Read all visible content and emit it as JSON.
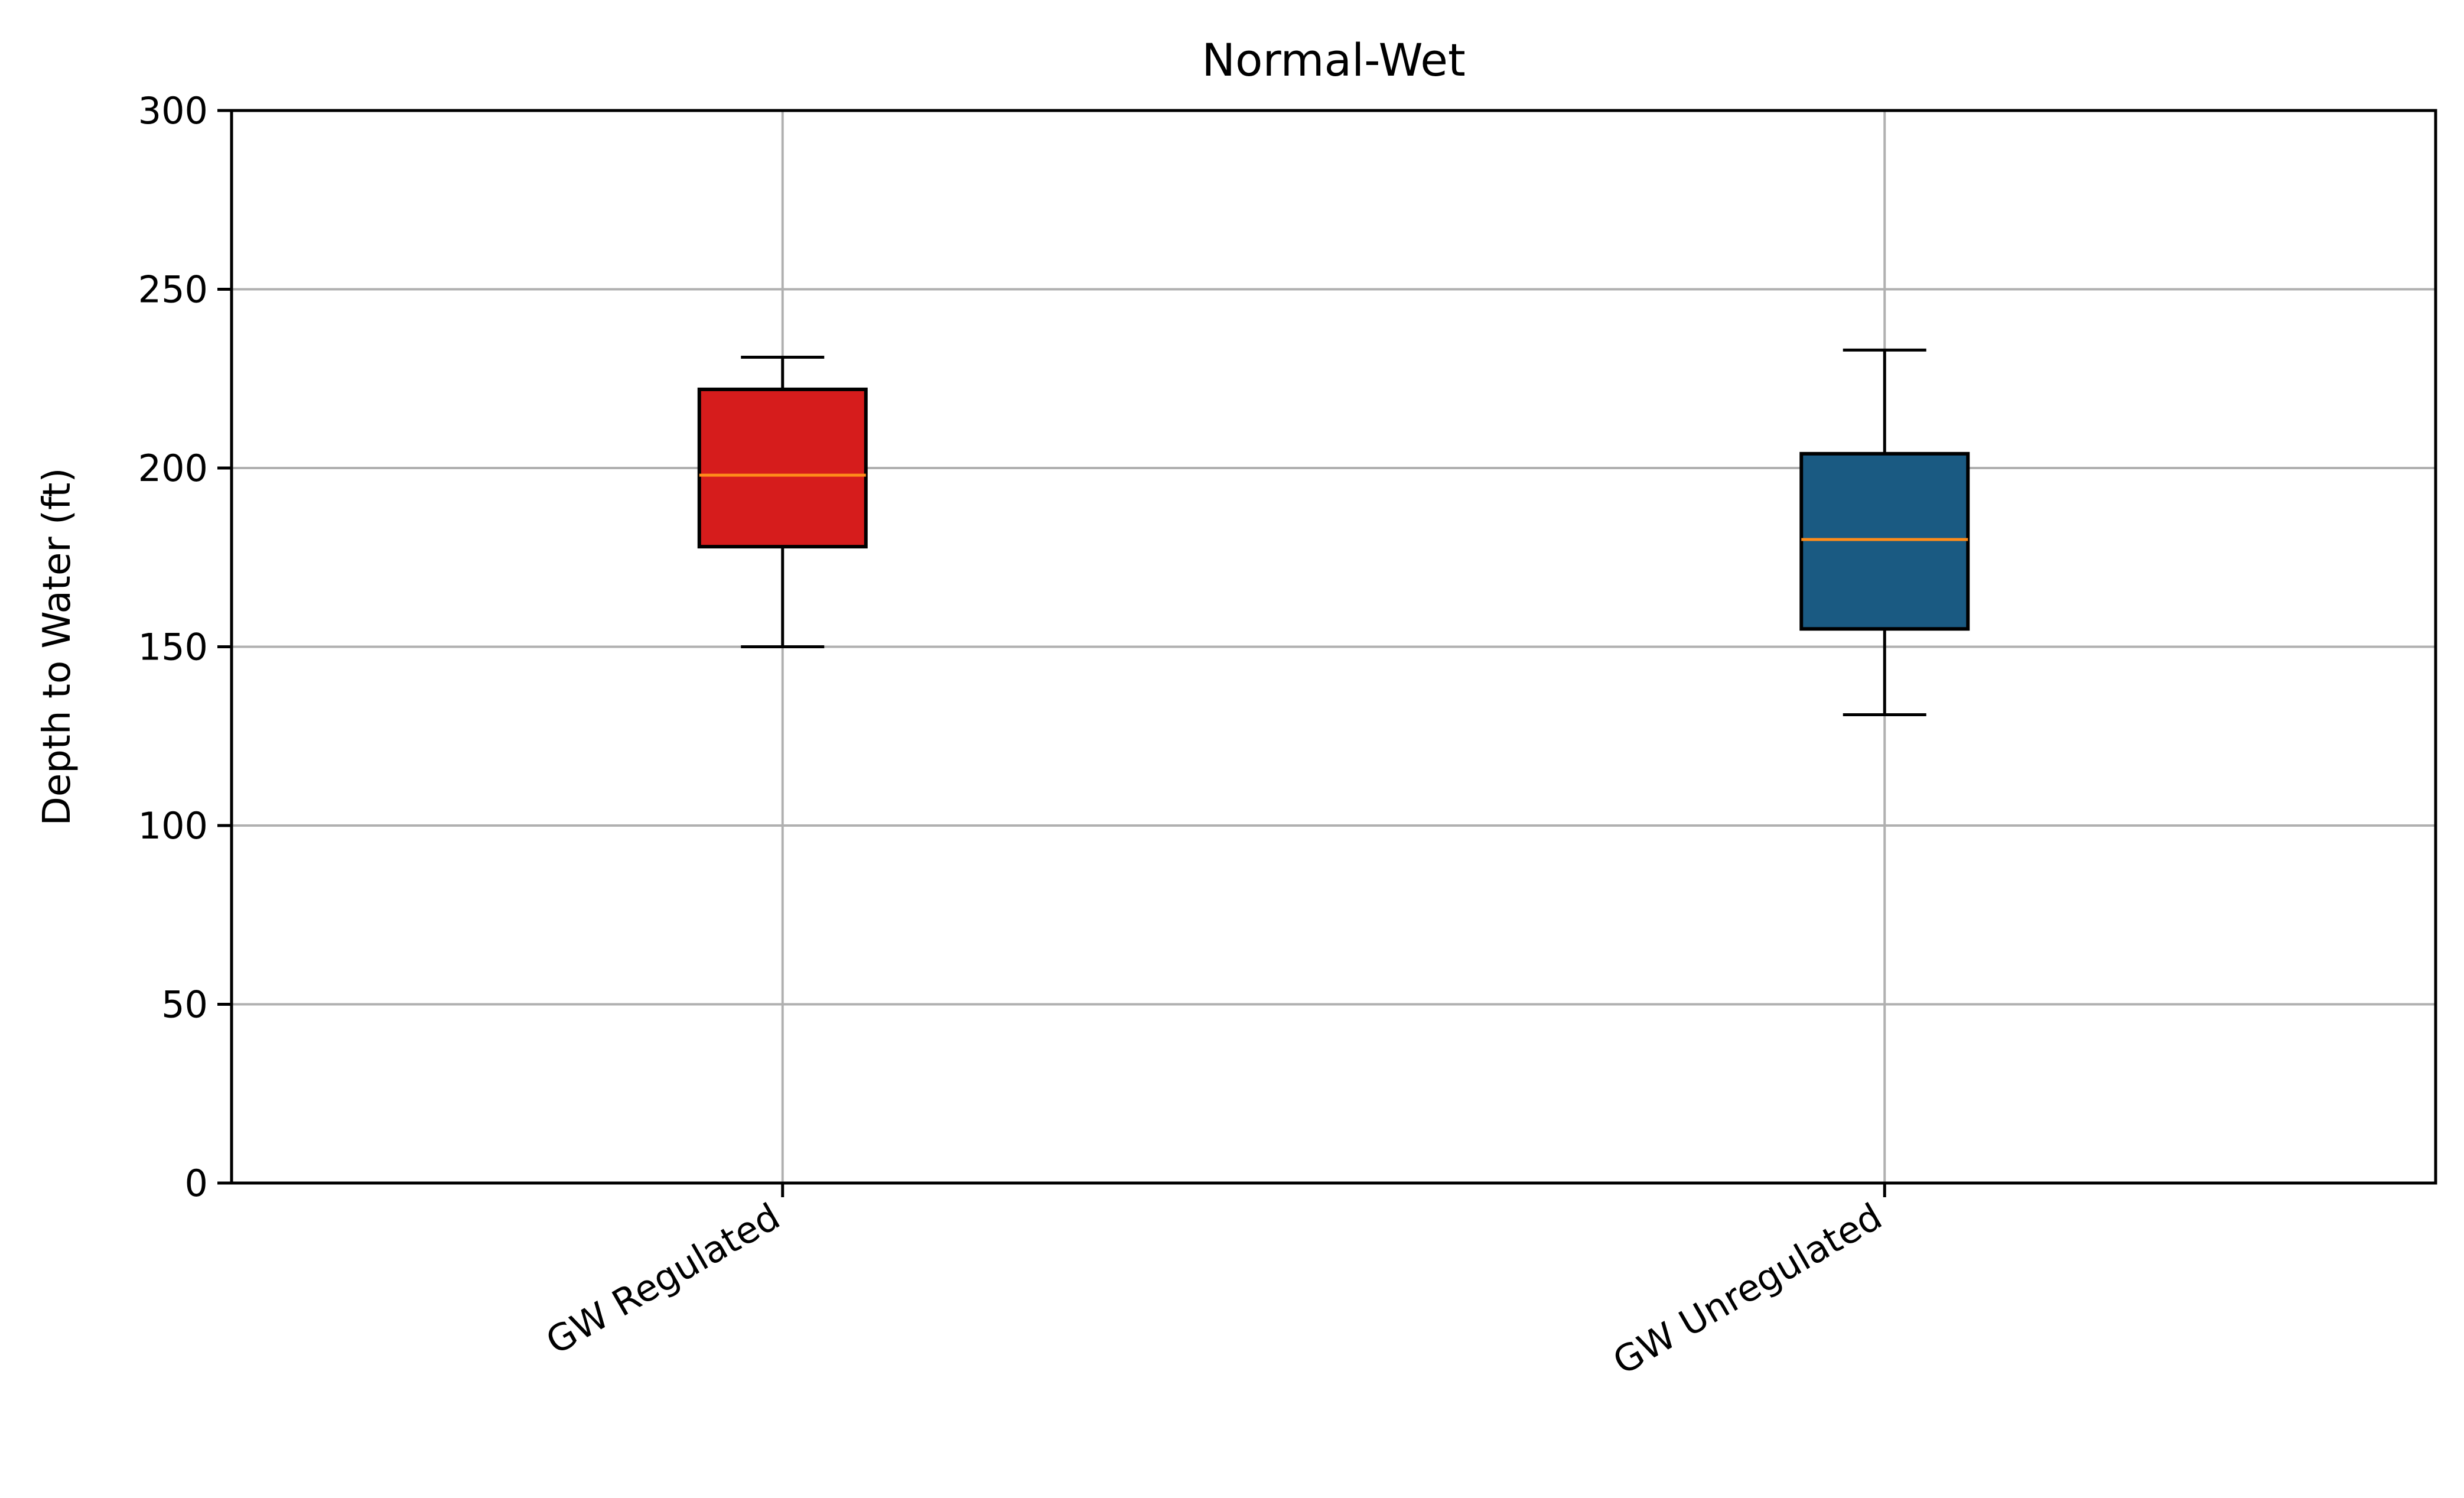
{
  "chart_data": {
    "type": "box",
    "title": "Normal-Wet",
    "xlabel": "",
    "ylabel": "Depth to Water (ft)",
    "ylim": [
      0,
      300
    ],
    "yticks": [
      0,
      50,
      100,
      150,
      200,
      250,
      300
    ],
    "grid": true,
    "categories": [
      "GW Regulated",
      "GW Unregulated"
    ],
    "boxes": [
      {
        "category": "GW Regulated",
        "whisker_low": 150,
        "q1": 178,
        "median": 198,
        "q3": 222,
        "whisker_high": 231,
        "color": "#d61c1c"
      },
      {
        "category": "GW Unregulated",
        "whisker_low": 131,
        "q1": 155,
        "median": 180,
        "q3": 204,
        "whisker_high": 233,
        "color": "#1a5a82"
      }
    ],
    "median_color": "#ff8c1a",
    "grid_color": "#b0b0b0"
  }
}
